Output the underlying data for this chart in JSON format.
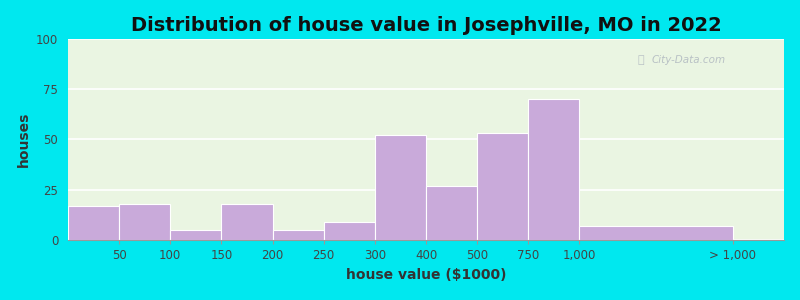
{
  "title": "Distribution of house value in Josephville, MO in 2022",
  "xlabel": "house value ($1000)",
  "ylabel": "houses",
  "bar_color": "#c9aada",
  "background_color": "#eaf5e2",
  "outer_background": "#00e8ef",
  "ylim": [
    0,
    100
  ],
  "yticks": [
    0,
    25,
    50,
    75,
    100
  ],
  "bar_heights": [
    17,
    18,
    5,
    18,
    5,
    9,
    52,
    27,
    53,
    70,
    7
  ],
  "xtick_labels": [
    "50",
    "100",
    "150",
    "200",
    "250",
    "300",
    "400",
    "500",
    "750",
    "1,000",
    "> 1,000"
  ],
  "title_fontsize": 14,
  "axis_label_fontsize": 10,
  "tick_fontsize": 8.5,
  "watermark_text": "City-Data.com",
  "bar_positions": [
    0,
    1,
    2,
    3,
    4,
    5,
    6,
    7,
    8,
    9,
    10
  ],
  "bar_widths": [
    1,
    1,
    1,
    1,
    1,
    1,
    1,
    1,
    1,
    1,
    3
  ],
  "tick_positions": [
    1,
    2,
    3,
    4,
    5,
    6,
    7,
    8,
    9,
    10,
    13
  ],
  "xlim": [
    0,
    14
  ]
}
